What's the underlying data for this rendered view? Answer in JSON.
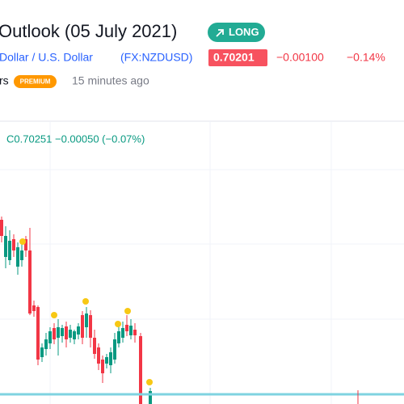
{
  "header": {
    "title": "Outlook (05 July 2021)",
    "badge": "LONG"
  },
  "symbol": {
    "name": "Dollar / U.S. Dollar",
    "ticker": "(FX:NZDUSD)",
    "price": "0.70201",
    "change": "−0.00100",
    "change_percent": "−0.14%"
  },
  "author": {
    "name": "rs",
    "badge": "PREMIUM",
    "time": "15 minutes ago"
  },
  "chart": {
    "legend": "C0.70251 −0.00050 (−0.07%)"
  }
}
